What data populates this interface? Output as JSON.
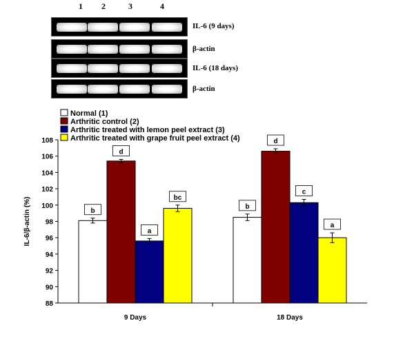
{
  "gel": {
    "lanes": [
      "1",
      "2",
      "3",
      "4"
    ],
    "strips": [
      {
        "label": "IL-6 (9 days)"
      },
      {
        "label": "β-actin"
      },
      {
        "label": "IL-6 (18 days)"
      },
      {
        "label": "β-actin"
      }
    ]
  },
  "chart_data": {
    "type": "bar",
    "categories": [
      "9 Days",
      "18 Days"
    ],
    "series": [
      {
        "name": "Normal (1)",
        "color": "#ffffff",
        "values": [
          98.1,
          98.5
        ],
        "errors": [
          0.3,
          0.4
        ],
        "labels": [
          "b",
          "b"
        ]
      },
      {
        "name": "Arthritic control (2)",
        "color": "#800000",
        "values": [
          105.4,
          106.6
        ],
        "errors": [
          0.2,
          0.3
        ],
        "labels": [
          "d",
          "d"
        ]
      },
      {
        "name": "Arthritic treated with lemon peel extract (3)",
        "color": "#000080",
        "values": [
          95.6,
          100.3
        ],
        "errors": [
          0.3,
          0.4
        ],
        "labels": [
          "a",
          "c"
        ]
      },
      {
        "name": "Arthritic treated with grape fruit peel extract (4)",
        "color": "#ffff00",
        "values": [
          99.6,
          96.0
        ],
        "errors": [
          0.4,
          0.6
        ],
        "labels": [
          "bc",
          "a"
        ]
      }
    ],
    "ylabel": "IL-6/β-actin (%)",
    "ylim": [
      88,
      108
    ],
    "yticks": [
      "88",
      "90",
      "92",
      "94",
      "96",
      "98",
      "100",
      "102",
      "104",
      "106",
      "108"
    ],
    "grid": false,
    "legend": "top"
  }
}
